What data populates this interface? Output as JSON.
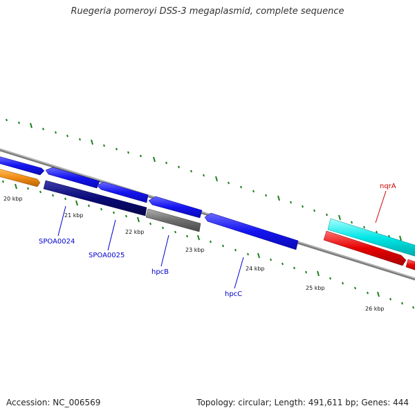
{
  "title": "Ruegeria pomeroyi DSS-3 megaplasmid, complete sequence",
  "accession": "Accession: NC_006569",
  "summary": "Topology: circular; Length: 491,611 bp; Genes: 444",
  "scale_labels": [
    {
      "text": "20 kbp",
      "kbp": 20
    },
    {
      "text": "21 kbp",
      "kbp": 21
    },
    {
      "text": "22 kbp",
      "kbp": 22
    },
    {
      "text": "23 kbp",
      "kbp": 23
    },
    {
      "text": "24 kbp",
      "kbp": 24
    },
    {
      "text": "25 kbp",
      "kbp": 25
    },
    {
      "text": "26 kbp",
      "kbp": 26
    }
  ],
  "gene_labels": [
    {
      "text": "SPOA0024",
      "color": "#0000cc"
    },
    {
      "text": "SPOA0025",
      "color": "#0000cc"
    },
    {
      "text": "hpcB",
      "color": "#0000cc"
    },
    {
      "text": "hpcC",
      "color": "#0000cc"
    },
    {
      "text": "nqrA",
      "color": "#cc0000"
    }
  ],
  "colors": {
    "backbone": "#808080",
    "ticks": "#1a7f1a",
    "blue_gene": "#1414f0",
    "navy_gene": "#0a0a78",
    "grey_gene": "#6e6e6e",
    "orange_gene": "#f08c14",
    "cyan_gene": "#00e6e6",
    "red_gene": "#e60000"
  }
}
